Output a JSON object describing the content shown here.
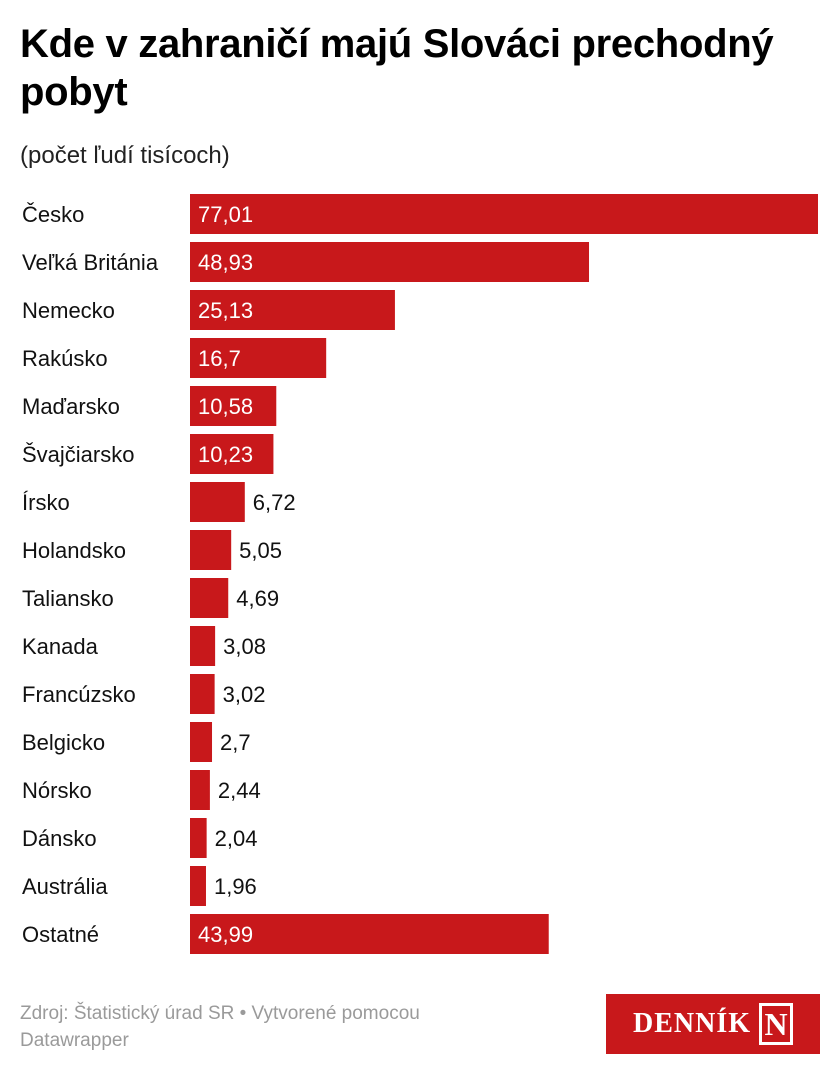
{
  "chart_data": {
    "type": "bar",
    "orientation": "horizontal",
    "title": "Kde v zahraničí majú Slováci prechodný pobyt",
    "subtitle": "(počet ľudí tisícoch)",
    "categories": [
      "Česko",
      "Veľká Británia",
      "Nemecko",
      "Rakúsko",
      "Maďarsko",
      "Švajčiarsko",
      "Írsko",
      "Holandsko",
      "Taliansko",
      "Kanada",
      "Francúzsko",
      "Belgicko",
      "Nórsko",
      "Dánsko",
      "Austrália",
      "Ostatné"
    ],
    "values": [
      77.01,
      48.93,
      25.13,
      16.7,
      10.58,
      10.23,
      6.72,
      5.05,
      4.69,
      3.08,
      3.02,
      2.7,
      2.44,
      2.04,
      1.96,
      43.99
    ],
    "value_labels": [
      "77,01",
      "48,93",
      "25,13",
      "16,7",
      "10,58",
      "10,23",
      "6,72",
      "5,05",
      "4,69",
      "3,08",
      "3,02",
      "2,7",
      "2,44",
      "2,04",
      "1,96",
      "43,99"
    ],
    "xlim": [
      0,
      77.01
    ],
    "bar_color": "#c8181b",
    "grid": false,
    "legend": "none"
  },
  "footer": {
    "source_text": "Zdroj: Štatistický úrad SR • Vytvorené pomocou Datawrapper"
  },
  "logo": {
    "word": "DENNÍK",
    "letter": "N",
    "color": "#c8181b"
  }
}
